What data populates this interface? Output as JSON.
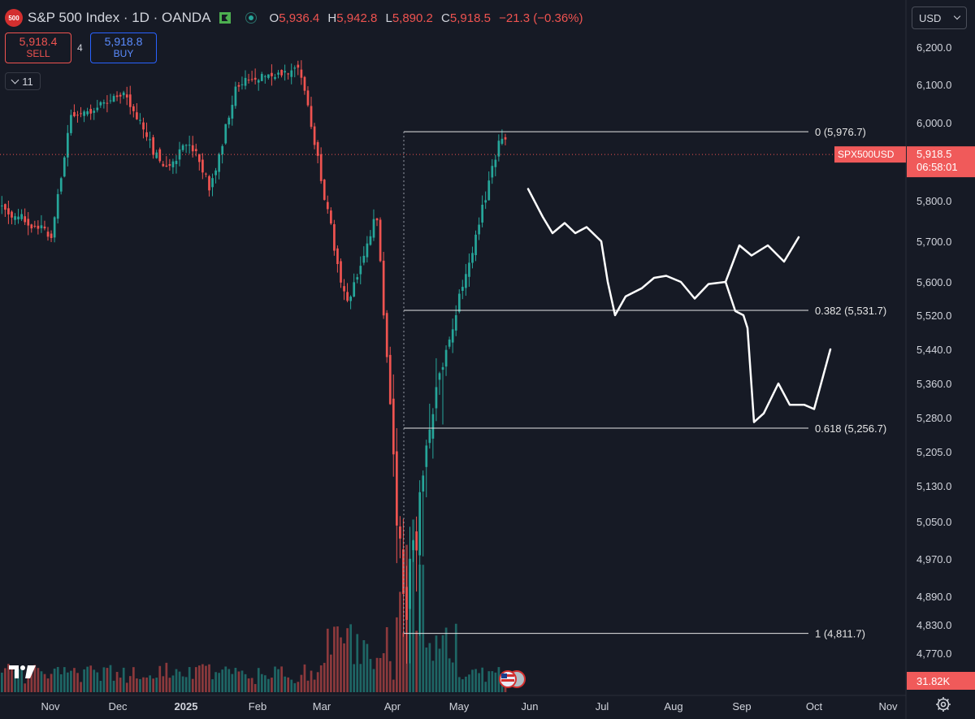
{
  "header": {
    "logo_text": "500",
    "title": "S&P 500 Index · 1D · OANDA",
    "ohlc": {
      "o_label": "O",
      "o": "5,936.4",
      "h_label": "H",
      "h": "5,942.8",
      "l_label": "L",
      "l": "5,890.2",
      "c_label": "C",
      "c": "5,918.5",
      "change": "−21.3 (−0.36%)"
    },
    "icons": [
      "flag-icon",
      "status-dot-icon"
    ]
  },
  "trade": {
    "sell_price": "5,918.4",
    "sell_label": "SELL",
    "spread": "4",
    "buy_price": "5,918.8",
    "buy_label": "BUY"
  },
  "indicators_toggle": {
    "count": "11"
  },
  "currency": {
    "value": "USD"
  },
  "price_tag": {
    "symbol": "SPX500USD",
    "price": "5,918.5",
    "countdown": "06:58:01"
  },
  "volume_tag": "31.82K",
  "colors": {
    "up": "#26a69a",
    "down": "#ef5350",
    "background": "#161a25",
    "accent": "#2962ff"
  },
  "chart_data": {
    "type": "candlestick",
    "y_ticks": [
      6200,
      6100,
      6000,
      5800,
      5700,
      5600,
      5520,
      5440,
      5360,
      5280,
      5205,
      5130,
      5050,
      4970,
      4890,
      4830,
      4770
    ],
    "y_tick_labels": [
      "6,200.0",
      "6,100.0",
      "6,000.0",
      "5,800.0",
      "5,700.0",
      "5,600.0",
      "5,520.0",
      "5,440.0",
      "5,360.0",
      "5,280.0",
      "5,205.0",
      "5,130.0",
      "5,050.0",
      "4,970.0",
      "4,890.0",
      "4,830.0",
      "4,770.0"
    ],
    "x_ticks": [
      "Nov",
      "Dec",
      "2025",
      "Feb",
      "Mar",
      "Apr",
      "May",
      "Jun",
      "Jul",
      "Aug",
      "Sep",
      "Oct",
      "Nov"
    ],
    "current_price": 5918.5,
    "fib_levels": [
      {
        "ratio": "0",
        "price": 5976.7,
        "label": "0 (5,976.7)"
      },
      {
        "ratio": "0.382",
        "price": 5531.7,
        "label": "0.382 (5,531.7)"
      },
      {
        "ratio": "0.618",
        "price": 5256.7,
        "label": "0.618 (5,256.7)"
      },
      {
        "ratio": "1",
        "price": 4811.7,
        "label": "1 (4,811.7)"
      }
    ],
    "anchors": [
      {
        "month": "Oct",
        "price": 5780
      },
      {
        "month": "Nov",
        "price": 5720
      },
      {
        "month": "Nov",
        "price": 6010
      },
      {
        "month": "Dec",
        "price": 6080
      },
      {
        "month": "Dec",
        "price": 5880
      },
      {
        "month": "2025",
        "price": 5950
      },
      {
        "month": "2025",
        "price": 5830
      },
      {
        "month": "Feb",
        "price": 6100
      },
      {
        "month": "Feb",
        "price": 6145
      },
      {
        "month": "Mar",
        "price": 5810
      },
      {
        "month": "Mar",
        "price": 5540
      },
      {
        "month": "Apr",
        "price": 5770
      },
      {
        "month": "Apr",
        "price": 4840
      },
      {
        "month": "Apr",
        "price": 5380
      },
      {
        "month": "May",
        "price": 5620
      },
      {
        "month": "May",
        "price": 5960
      }
    ],
    "projection_a": [
      {
        "month": "Jun",
        "price": 5820
      },
      {
        "month": "Jun",
        "price": 5720
      },
      {
        "month": "Jul",
        "price": 5700
      },
      {
        "month": "Jul",
        "price": 5520
      },
      {
        "month": "Aug",
        "price": 5610
      },
      {
        "month": "Aug",
        "price": 5560
      },
      {
        "month": "Sep",
        "price": 5690
      },
      {
        "month": "Oct",
        "price": 5700
      }
    ],
    "projection_b": [
      {
        "month": "Sep",
        "price": 5580
      },
      {
        "month": "Sep",
        "price": 5270
      },
      {
        "month": "Sep",
        "price": 5350
      },
      {
        "month": "Oct",
        "price": 5300
      },
      {
        "month": "Oct",
        "price": 5440
      }
    ]
  }
}
